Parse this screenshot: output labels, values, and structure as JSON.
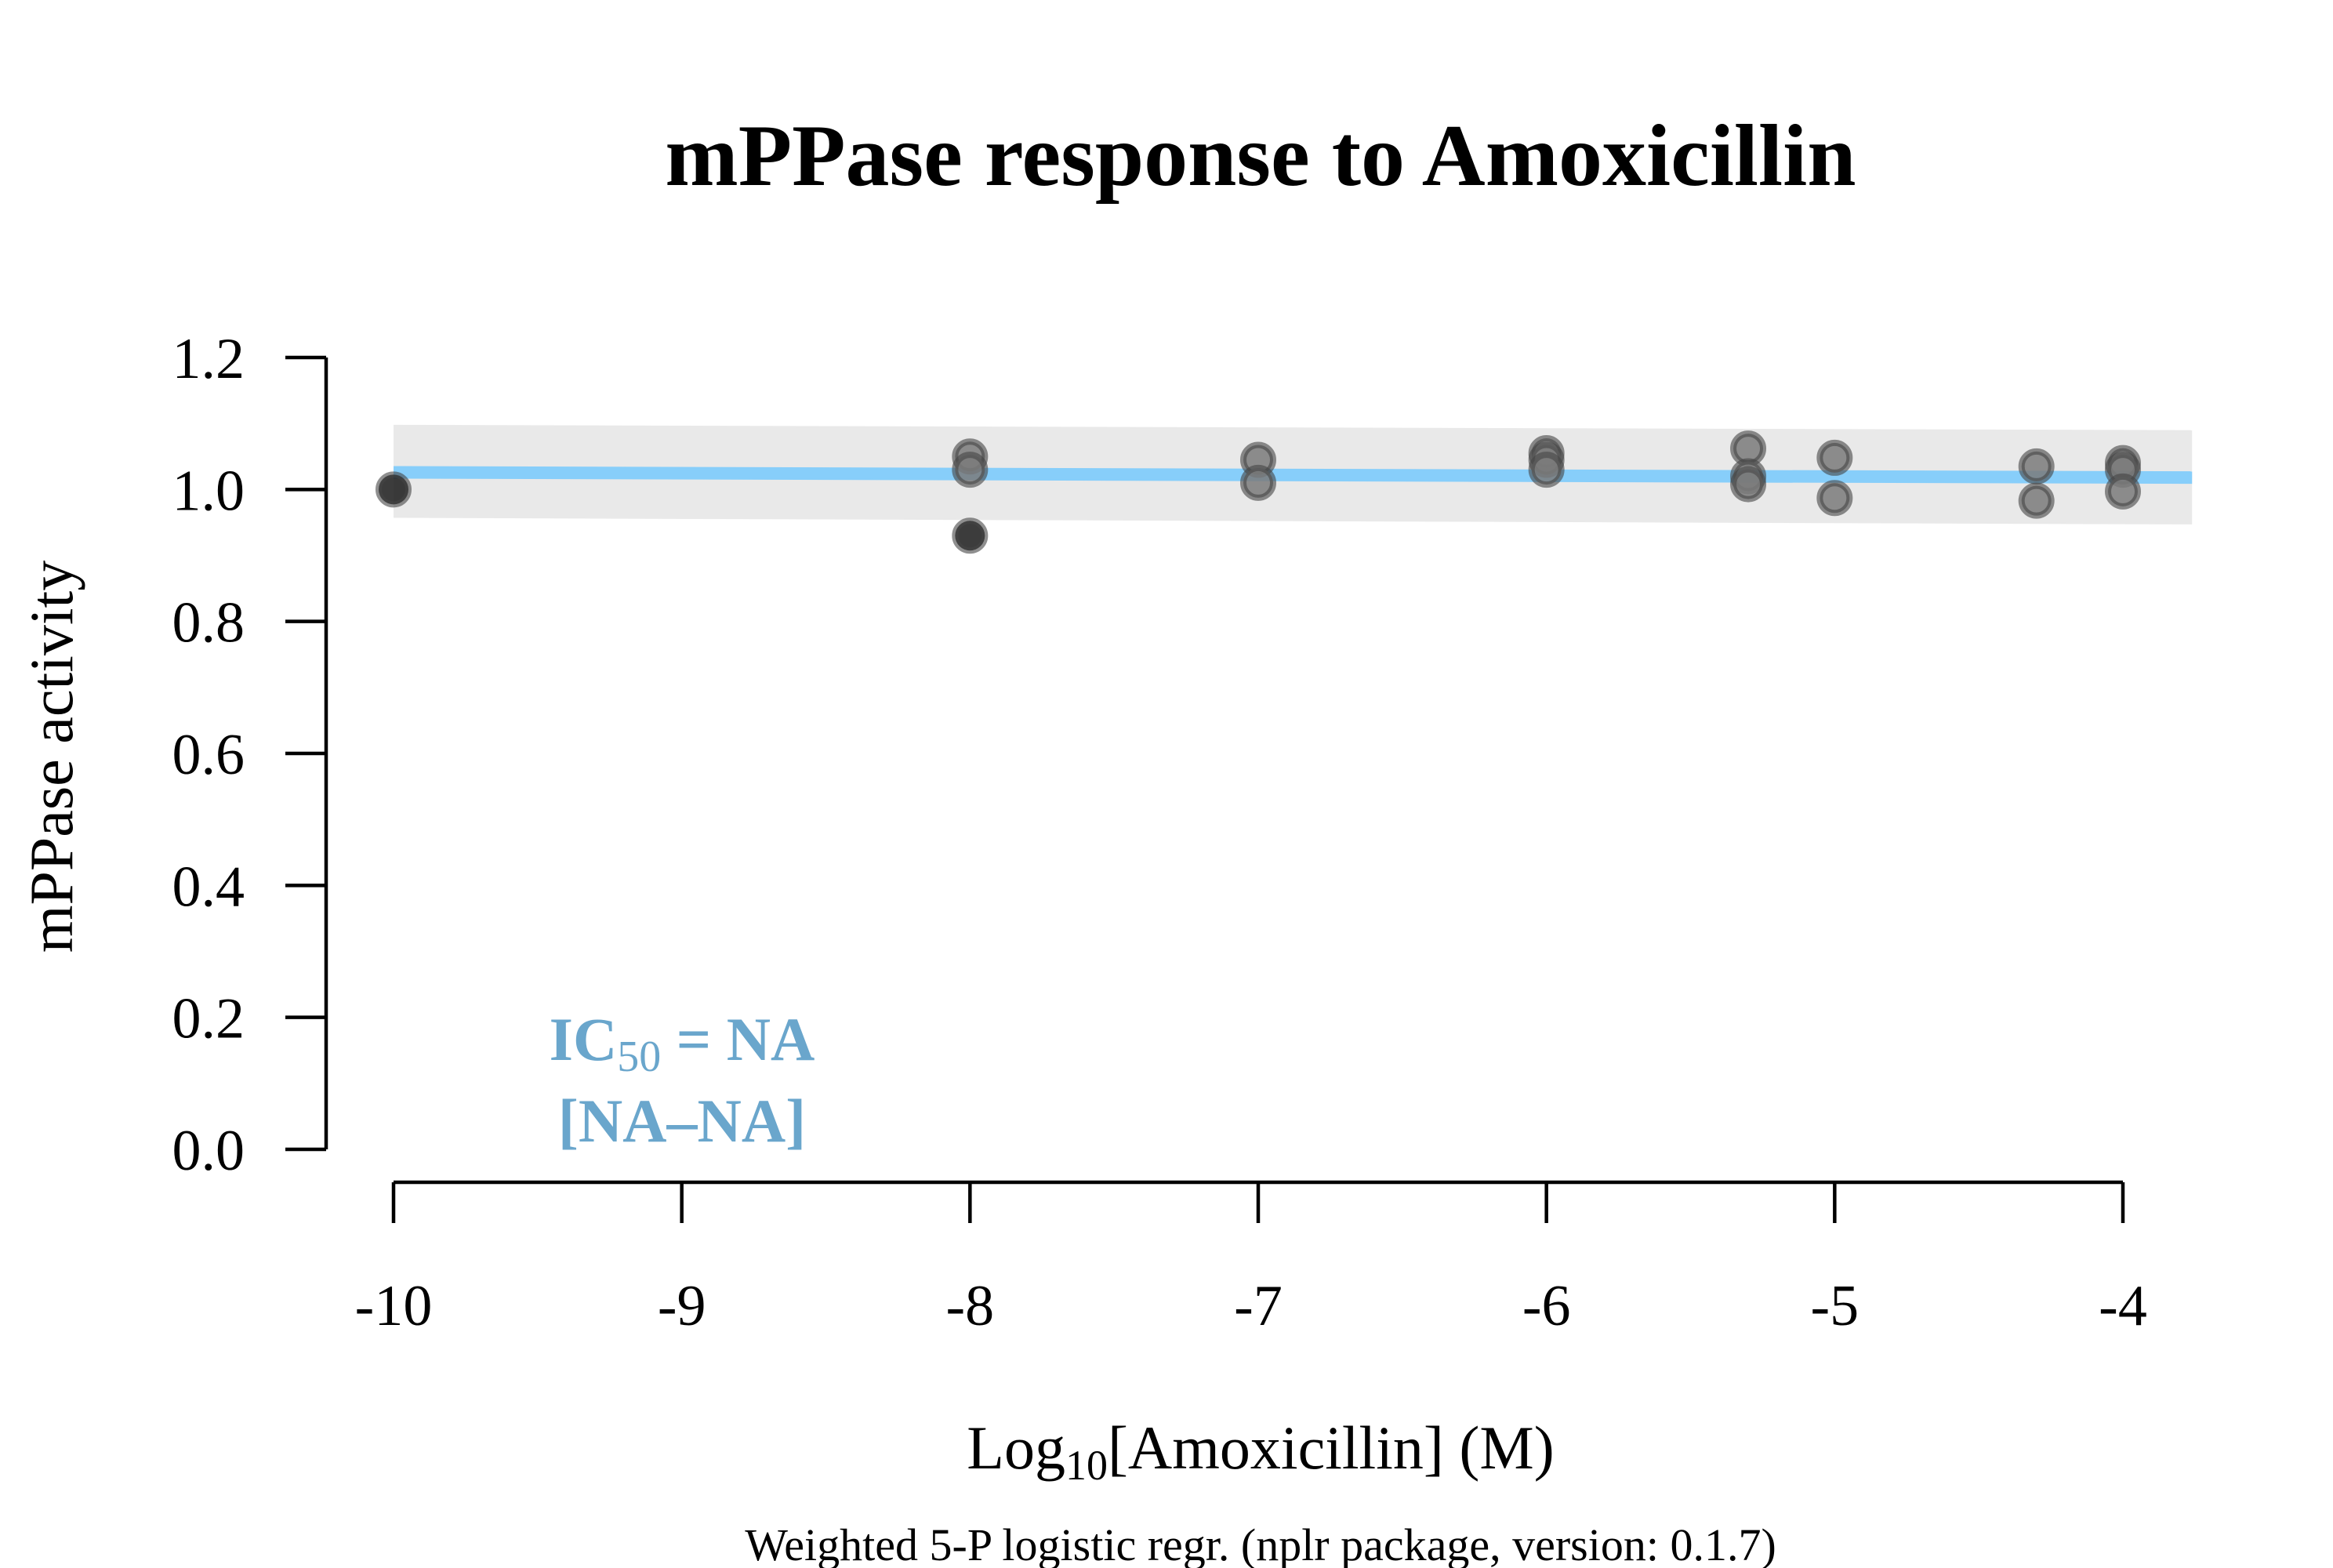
{
  "chart_data": {
    "type": "scatter",
    "title": "mPPase response to Amoxicillin",
    "xlabel_prefix": "Log",
    "xlabel_sub": "10",
    "xlabel_suffix": "[Amoxicillin] (M)",
    "ylabel": "mPPase activity",
    "footnote": "Weighted 5-P logistic regr. (nplr package, version: 0.1.7)",
    "annotation": {
      "line1_prefix": "IC",
      "line1_sub": "50",
      "line1_suffix": " = NA",
      "line2": "[NA–NA]",
      "color": "#6aa6cc"
    },
    "xlim": [
      -10,
      -4
    ],
    "ylim": [
      0,
      1.2
    ],
    "x_ticks": [
      -10,
      -9,
      -8,
      -7,
      -6,
      -5,
      -4
    ],
    "x_tick_labels": [
      "-10",
      "-9",
      "-8",
      "-7",
      "-6",
      "-5",
      "-4"
    ],
    "y_ticks": [
      0,
      0.2,
      0.4,
      0.6,
      0.8,
      1.0,
      1.2
    ],
    "y_tick_labels": [
      "0.0",
      "0.2",
      "0.4",
      "0.6",
      "0.8",
      "1.0",
      "1.2"
    ],
    "points": [
      {
        "x": -10,
        "y": 1.0,
        "color": "#1a1a1a"
      },
      {
        "x": -8,
        "y": 1.05,
        "color": "#7a7a7a"
      },
      {
        "x": -8,
        "y": 1.03,
        "color": "#7a7a7a"
      },
      {
        "x": -8,
        "y": 0.93,
        "color": "#1a1a1a"
      },
      {
        "x": -7,
        "y": 1.045,
        "color": "#7a7a7a"
      },
      {
        "x": -7,
        "y": 1.01,
        "color": "#7a7a7a"
      },
      {
        "x": -6,
        "y": 1.055,
        "color": "#7a7a7a"
      },
      {
        "x": -6,
        "y": 1.045,
        "color": "#7a7a7a"
      },
      {
        "x": -6,
        "y": 1.03,
        "color": "#7a7a7a"
      },
      {
        "x": -5.3,
        "y": 1.062,
        "color": "#7a7a7a"
      },
      {
        "x": -5.3,
        "y": 1.02,
        "color": "#7a7a7a"
      },
      {
        "x": -5.3,
        "y": 1.008,
        "color": "#7a7a7a"
      },
      {
        "x": -5,
        "y": 1.048,
        "color": "#7a7a7a"
      },
      {
        "x": -5,
        "y": 0.987,
        "color": "#7a7a7a"
      },
      {
        "x": -4.3,
        "y": 1.035,
        "color": "#7a7a7a"
      },
      {
        "x": -4.3,
        "y": 0.983,
        "color": "#7a7a7a"
      },
      {
        "x": -4,
        "y": 1.04,
        "color": "#7a7a7a"
      },
      {
        "x": -4,
        "y": 1.03,
        "color": "#7a7a7a"
      },
      {
        "x": -4,
        "y": 0.997,
        "color": "#7a7a7a"
      }
    ],
    "fit_line": {
      "x": [
        -10,
        -3.76
      ],
      "y": [
        1.026,
        1.018
      ],
      "color": "#87cefa"
    },
    "confidence_band": {
      "x": [
        -10,
        -3.76
      ],
      "upper": [
        1.098,
        1.09
      ],
      "lower": [
        0.957,
        0.947
      ],
      "color": "#e9e9e9"
    },
    "grid": false
  }
}
